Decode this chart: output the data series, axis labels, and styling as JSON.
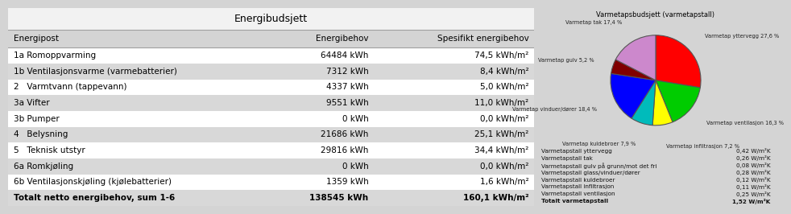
{
  "title_table": "Energibudsjett",
  "col_headers": [
    "Energipost",
    "Energibehov",
    "Spesifikt energibehov"
  ],
  "rows": [
    [
      "1a Romoppvarming",
      "64484 kWh",
      "74,5 kWh/m²"
    ],
    [
      "1b Ventilasjonsvarme (varmebatterier)",
      "7312 kWh",
      "8,4 kWh/m²"
    ],
    [
      "2   Varmtvann (tappevann)",
      "4337 kWh",
      "5,0 kWh/m²"
    ],
    [
      "3a Vifter",
      "9551 kWh",
      "11,0 kWh/m²"
    ],
    [
      "3b Pumper",
      "0 kWh",
      "0,0 kWh/m²"
    ],
    [
      "4   Belysning",
      "21686 kWh",
      "25,1 kWh/m²"
    ],
    [
      "5   Teknisk utstyr",
      "29816 kWh",
      "34,4 kWh/m²"
    ],
    [
      "6a Romkjøling",
      "0 kWh",
      "0,0 kWh/m²"
    ],
    [
      "6b Ventilasjonskjøling (kjølebatterier)",
      "1359 kWh",
      "1,6 kWh/m²"
    ],
    [
      "Totalt netto energibehov, sum 1-6",
      "138545 kWh",
      "160,1 kWh/m²"
    ]
  ],
  "row_shading_odd": "#ffffff",
  "row_shading_even": "#d8d8d8",
  "title_pie": "Varmetapsbudsjett (varmetapstall)",
  "pie_labels": [
    "Varmetap yttervegg 27,6 %",
    "Varmetap ventilasjon 16,3 %",
    "Varmetap infiltrasjon 7,2 %",
    "Varmetap kuldebroer 7,9 %",
    "Varmetap vinduer/dører 18,4 %",
    "Varmetap gulv 5,2 %",
    "Varmetap tak 17,4 %"
  ],
  "pie_sizes": [
    27.6,
    16.3,
    7.2,
    7.9,
    18.4,
    5.2,
    17.4
  ],
  "pie_colors": [
    "#ff0000",
    "#00cc00",
    "#ffff00",
    "#00bbbb",
    "#0000ff",
    "#800000",
    "#cc88cc"
  ],
  "legend_rows": [
    [
      "Varmetapstall yttervegg",
      "0,42 W/m²K"
    ],
    [
      "Varmetapstall tak",
      "0,26 W/m²K"
    ],
    [
      "Varmetapstall gulv på grunn/mot det fri",
      "0,08 W/m²K"
    ],
    [
      "Varmetapstall glass/vinduer/dører",
      "0,28 W/m²K"
    ],
    [
      "Varmetapstall kuldebroer",
      "0,12 W/m²K"
    ],
    [
      "Varmetapstall infiltrasjon",
      "0,11 W/m²K"
    ],
    [
      "Varmetapstall ventilasjon",
      "0,25 W/m²K"
    ],
    [
      "Totalt varmetapstall",
      "1,52 W/m²K"
    ]
  ],
  "bg_color": "#d4d4d4",
  "table_bg": "#f2f2f2",
  "border_color": "#a0a0a0"
}
